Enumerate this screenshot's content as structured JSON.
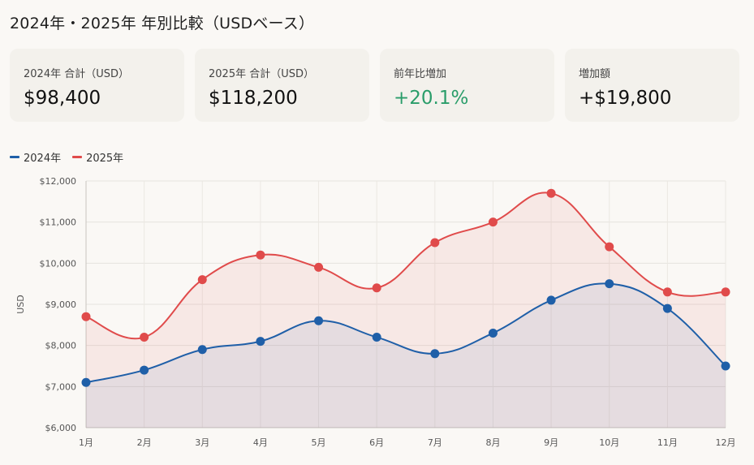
{
  "title": "2024年・2025年 年別比較（USDベース）",
  "cards": [
    {
      "label": "2024年 合計（USD）",
      "value": "$98,400"
    },
    {
      "label": "2025年 合計（USD）",
      "value": "$118,200"
    },
    {
      "label": "前年比増加",
      "value": "+20.1%"
    },
    {
      "label": "増加額",
      "value": "+$19,800"
    }
  ],
  "colors": {
    "series_2024": "#1f5fa8",
    "series_2025": "#e04b4b",
    "positive": "#2a9d6a"
  },
  "chart_data": {
    "type": "line",
    "categories": [
      "1月",
      "2月",
      "3月",
      "4月",
      "5月",
      "6月",
      "7月",
      "8月",
      "9月",
      "10月",
      "11月",
      "12月"
    ],
    "series": [
      {
        "name": "2024年",
        "values": [
          7100,
          7400,
          7900,
          8100,
          8600,
          8200,
          7800,
          8300,
          9100,
          9500,
          8900,
          7500
        ]
      },
      {
        "name": "2025年",
        "values": [
          8700,
          8200,
          9600,
          10200,
          9900,
          9400,
          10500,
          11000,
          11700,
          10400,
          9300,
          9300
        ]
      }
    ],
    "ylabel": "USD",
    "ylim": [
      6000,
      12000
    ],
    "yticks": [
      "$6,000",
      "$7,000",
      "$8,000",
      "$9,000",
      "$10,000",
      "$11,000",
      "$12,000"
    ],
    "grid": true,
    "legend": "top-left",
    "fill": "area"
  }
}
